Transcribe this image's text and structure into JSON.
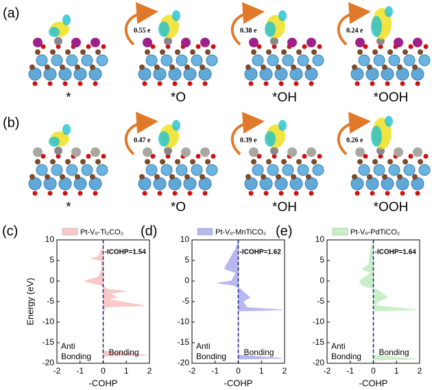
{
  "rows": [
    {
      "label": "(a)",
      "items": [
        {
          "caption": "*"
        },
        {
          "caption": "*O",
          "charge": "0.55 e"
        },
        {
          "caption": "*OH",
          "charge": "0.38 e"
        },
        {
          "caption": "*OOH",
          "charge": "0.24 e"
        }
      ]
    },
    {
      "label": "(b)",
      "items": [
        {
          "caption": "*"
        },
        {
          "caption": "*O",
          "charge": "0.47 e"
        },
        {
          "caption": "*OH",
          "charge": "0.39 e"
        },
        {
          "caption": "*OOH",
          "charge": "0.26 e"
        }
      ]
    }
  ],
  "chart_data": [
    {
      "type": "area",
      "label": "(c)",
      "legend": "Pt-Vₒ-Ti₂CO₂",
      "color": "#f9c9c9",
      "ylabel": "Energy (eV)",
      "xlabel": "-COHP",
      "annotation": "-ICOHP=1.54",
      "left_label": [
        "Anti",
        "Bonding"
      ],
      "right_label": "Bonding",
      "energy": [
        10,
        8,
        7.5,
        6,
        5.5,
        5,
        3,
        1,
        0,
        -0.5,
        -1,
        -2,
        -2.5,
        -3,
        -4,
        -4.5,
        -6,
        -6.3,
        -8,
        -17,
        -18,
        -18.3,
        -20
      ],
      "values": [
        0,
        0,
        -0.1,
        -0.2,
        -0.5,
        -0.1,
        -0.05,
        -0.2,
        -0.8,
        -0.5,
        -0.1,
        0.2,
        1.0,
        0.3,
        0.6,
        0.2,
        1.8,
        0.1,
        0,
        0,
        1.9,
        0,
        0
      ],
      "xlim": [
        -2,
        2
      ],
      "ylim": [
        -20,
        10
      ],
      "xticks": [
        -2,
        -1,
        0,
        1,
        2
      ],
      "yticks": [
        10,
        5,
        0,
        -5,
        -10,
        -15,
        -20
      ]
    },
    {
      "type": "area",
      "label": "(d)",
      "legend": "Pt-Vₒ-MnTiCO₂",
      "color": "#b8b8f0",
      "xlabel": "-COHP",
      "annotation": "-ICOHP=1.62",
      "left_label": [
        "Anti",
        "Bonding"
      ],
      "right_label": "Bonding",
      "energy": [
        10,
        8,
        6,
        3,
        2,
        0,
        -0.5,
        -1,
        -2,
        -3,
        -4,
        -5,
        -6.5,
        -7,
        -7.3,
        -18,
        -18.8,
        -19,
        -20
      ],
      "values": [
        0,
        -0.1,
        -0.3,
        -0.6,
        -0.1,
        -0.3,
        -0.9,
        -0.2,
        0.1,
        0.3,
        0.5,
        0.2,
        0.4,
        1.9,
        0,
        0,
        1.9,
        0,
        0
      ],
      "xlim": [
        -2,
        2
      ],
      "ylim": [
        -20,
        10
      ],
      "xticks": [
        -2,
        -1,
        0,
        1,
        2
      ],
      "yticks": [
        10,
        5,
        0,
        -5,
        -10,
        -15,
        -20
      ]
    },
    {
      "type": "area",
      "label": "(e)",
      "legend": "Pt-Vₒ-PdTiCO₂",
      "color": "#c8efc8",
      "xlabel": "-COHP",
      "annotation": "-ICOHP=1.64",
      "left_label": [
        "Anti",
        "Bonding"
      ],
      "right_label": "Bonding",
      "energy": [
        10,
        8,
        4,
        3,
        2,
        0,
        -1,
        -2,
        -3,
        -4,
        -5,
        -6,
        -7,
        -7.3,
        -18,
        -19,
        -19.2,
        -20
      ],
      "values": [
        0,
        -0.1,
        -0.2,
        -0.5,
        -0.1,
        -0.6,
        -0.5,
        0.1,
        0.4,
        0.6,
        0.2,
        0.1,
        1.9,
        0,
        0,
        1.9,
        0,
        0
      ],
      "xlim": [
        -2,
        2
      ],
      "ylim": [
        -20,
        10
      ],
      "xticks": [
        -2,
        -1,
        0,
        1,
        2
      ],
      "yticks": [
        10,
        5,
        0,
        -5,
        -10,
        -15,
        -20
      ]
    }
  ]
}
